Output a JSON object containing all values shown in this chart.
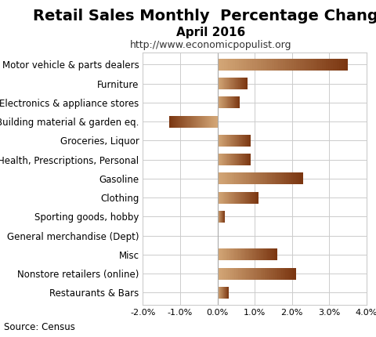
{
  "title": "Retail Sales Monthly  Percentage Change",
  "subtitle": "April 2016",
  "url": "http://www.economicpopulist.org",
  "source": "Source: Census",
  "categories": [
    "Motor vehicle & parts dealers",
    "Furniture",
    "Electronics & appliance stores",
    "Building material & garden eq.",
    "Groceries, Liquor",
    "Health, Prescriptions, Personal",
    "Gasoline",
    "Clothing",
    "Sporting goods, hobby",
    "General merchandise (Dept)",
    "Misc",
    "Nonstore retailers (online)",
    "Restaurants & Bars"
  ],
  "values": [
    3.5,
    0.8,
    0.6,
    -1.3,
    0.9,
    0.9,
    2.3,
    1.1,
    0.2,
    0.0,
    1.6,
    2.1,
    0.3
  ],
  "xlim": [
    -2.0,
    4.0
  ],
  "xticks": [
    -2.0,
    -1.0,
    0.0,
    1.0,
    2.0,
    3.0,
    4.0
  ],
  "color_light": "#d4a878",
  "color_dark": "#7a3510",
  "background_color": "#ffffff",
  "grid_color": "#cccccc",
  "bar_height": 0.62,
  "title_fontsize": 14,
  "subtitle_fontsize": 11,
  "url_fontsize": 9,
  "label_fontsize": 8.5,
  "tick_fontsize": 8,
  "source_fontsize": 8.5
}
